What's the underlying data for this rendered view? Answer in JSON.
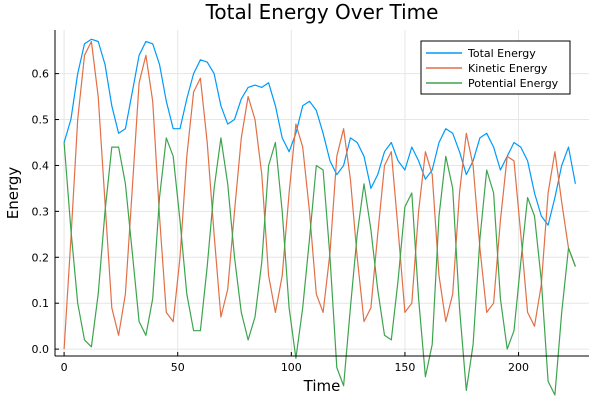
{
  "chart_data": {
    "type": "line",
    "title": "Total Energy Over Time",
    "xlabel": "Time",
    "ylabel": "Energy",
    "xlim": [
      -4,
      231
    ],
    "ylim": [
      -0.015,
      0.695
    ],
    "xticks": [
      0,
      50,
      100,
      150,
      200
    ],
    "yticks": [
      0.0,
      0.1,
      0.2,
      0.3,
      0.4,
      0.5,
      0.6
    ],
    "ytick_labels": [
      "0.0",
      "0.1",
      "0.2",
      "0.3",
      "0.4",
      "0.5",
      "0.6"
    ],
    "grid": true,
    "legend_position": "top-right",
    "x": [
      0,
      3,
      6,
      9,
      12,
      15,
      18,
      21,
      24,
      27,
      30,
      33,
      36,
      39,
      42,
      45,
      48,
      51,
      54,
      57,
      60,
      63,
      66,
      69,
      72,
      75,
      78,
      81,
      84,
      87,
      90,
      93,
      96,
      99,
      102,
      105,
      108,
      111,
      114,
      117,
      120,
      123,
      126,
      129,
      132,
      135,
      138,
      141,
      144,
      147,
      150,
      153,
      156,
      159,
      162,
      165,
      168,
      171,
      174,
      177,
      180,
      183,
      186,
      189,
      192,
      195,
      198,
      201,
      204,
      207,
      210,
      213,
      216,
      219,
      222,
      225
    ],
    "series": [
      {
        "name": "Total Energy",
        "color": "#009af9",
        "values": [
          0.45,
          0.5,
          0.6,
          0.665,
          0.675,
          0.67,
          0.62,
          0.53,
          0.47,
          0.48,
          0.56,
          0.64,
          0.67,
          0.665,
          0.62,
          0.54,
          0.48,
          0.48,
          0.545,
          0.6,
          0.63,
          0.625,
          0.6,
          0.53,
          0.49,
          0.5,
          0.545,
          0.57,
          0.575,
          0.57,
          0.58,
          0.53,
          0.46,
          0.43,
          0.47,
          0.53,
          0.54,
          0.52,
          0.47,
          0.41,
          0.38,
          0.4,
          0.46,
          0.45,
          0.42,
          0.35,
          0.38,
          0.43,
          0.45,
          0.41,
          0.39,
          0.44,
          0.41,
          0.37,
          0.39,
          0.45,
          0.48,
          0.47,
          0.43,
          0.38,
          0.41,
          0.46,
          0.47,
          0.44,
          0.39,
          0.42,
          0.45,
          0.44,
          0.41,
          0.34,
          0.29,
          0.27,
          0.33,
          0.4,
          0.44,
          0.36
        ]
      },
      {
        "name": "Kinetic Energy",
        "color": "#e26f46",
        "values": [
          0.0,
          0.24,
          0.5,
          0.64,
          0.67,
          0.55,
          0.32,
          0.09,
          0.03,
          0.12,
          0.35,
          0.58,
          0.64,
          0.54,
          0.29,
          0.08,
          0.06,
          0.2,
          0.42,
          0.56,
          0.59,
          0.45,
          0.25,
          0.07,
          0.13,
          0.3,
          0.46,
          0.55,
          0.5,
          0.38,
          0.16,
          0.08,
          0.16,
          0.34,
          0.49,
          0.44,
          0.3,
          0.12,
          0.08,
          0.21,
          0.42,
          0.48,
          0.37,
          0.2,
          0.06,
          0.09,
          0.25,
          0.4,
          0.43,
          0.26,
          0.08,
          0.1,
          0.3,
          0.43,
          0.38,
          0.16,
          0.06,
          0.12,
          0.34,
          0.47,
          0.4,
          0.22,
          0.08,
          0.1,
          0.28,
          0.42,
          0.41,
          0.25,
          0.08,
          0.05,
          0.14,
          0.34,
          0.43,
          0.32,
          0.22,
          0.18
        ]
      },
      {
        "name": "Potential Energy",
        "color": "#3da44d",
        "values": [
          0.45,
          0.26,
          0.1,
          0.02,
          0.005,
          0.12,
          0.3,
          0.44,
          0.44,
          0.36,
          0.21,
          0.06,
          0.03,
          0.11,
          0.33,
          0.46,
          0.42,
          0.28,
          0.12,
          0.04,
          0.04,
          0.18,
          0.35,
          0.46,
          0.36,
          0.2,
          0.08,
          0.02,
          0.07,
          0.19,
          0.4,
          0.45,
          0.3,
          0.09,
          -0.02,
          0.09,
          0.24,
          0.4,
          0.39,
          0.2,
          -0.04,
          -0.08,
          0.09,
          0.25,
          0.36,
          0.26,
          0.13,
          0.03,
          0.02,
          0.15,
          0.31,
          0.34,
          0.11,
          -0.06,
          0.01,
          0.29,
          0.42,
          0.35,
          0.09,
          -0.09,
          0.01,
          0.24,
          0.39,
          0.34,
          0.11,
          0.0,
          0.04,
          0.19,
          0.33,
          0.29,
          0.15,
          -0.07,
          -0.1,
          0.08,
          0.22,
          0.18
        ]
      }
    ]
  }
}
